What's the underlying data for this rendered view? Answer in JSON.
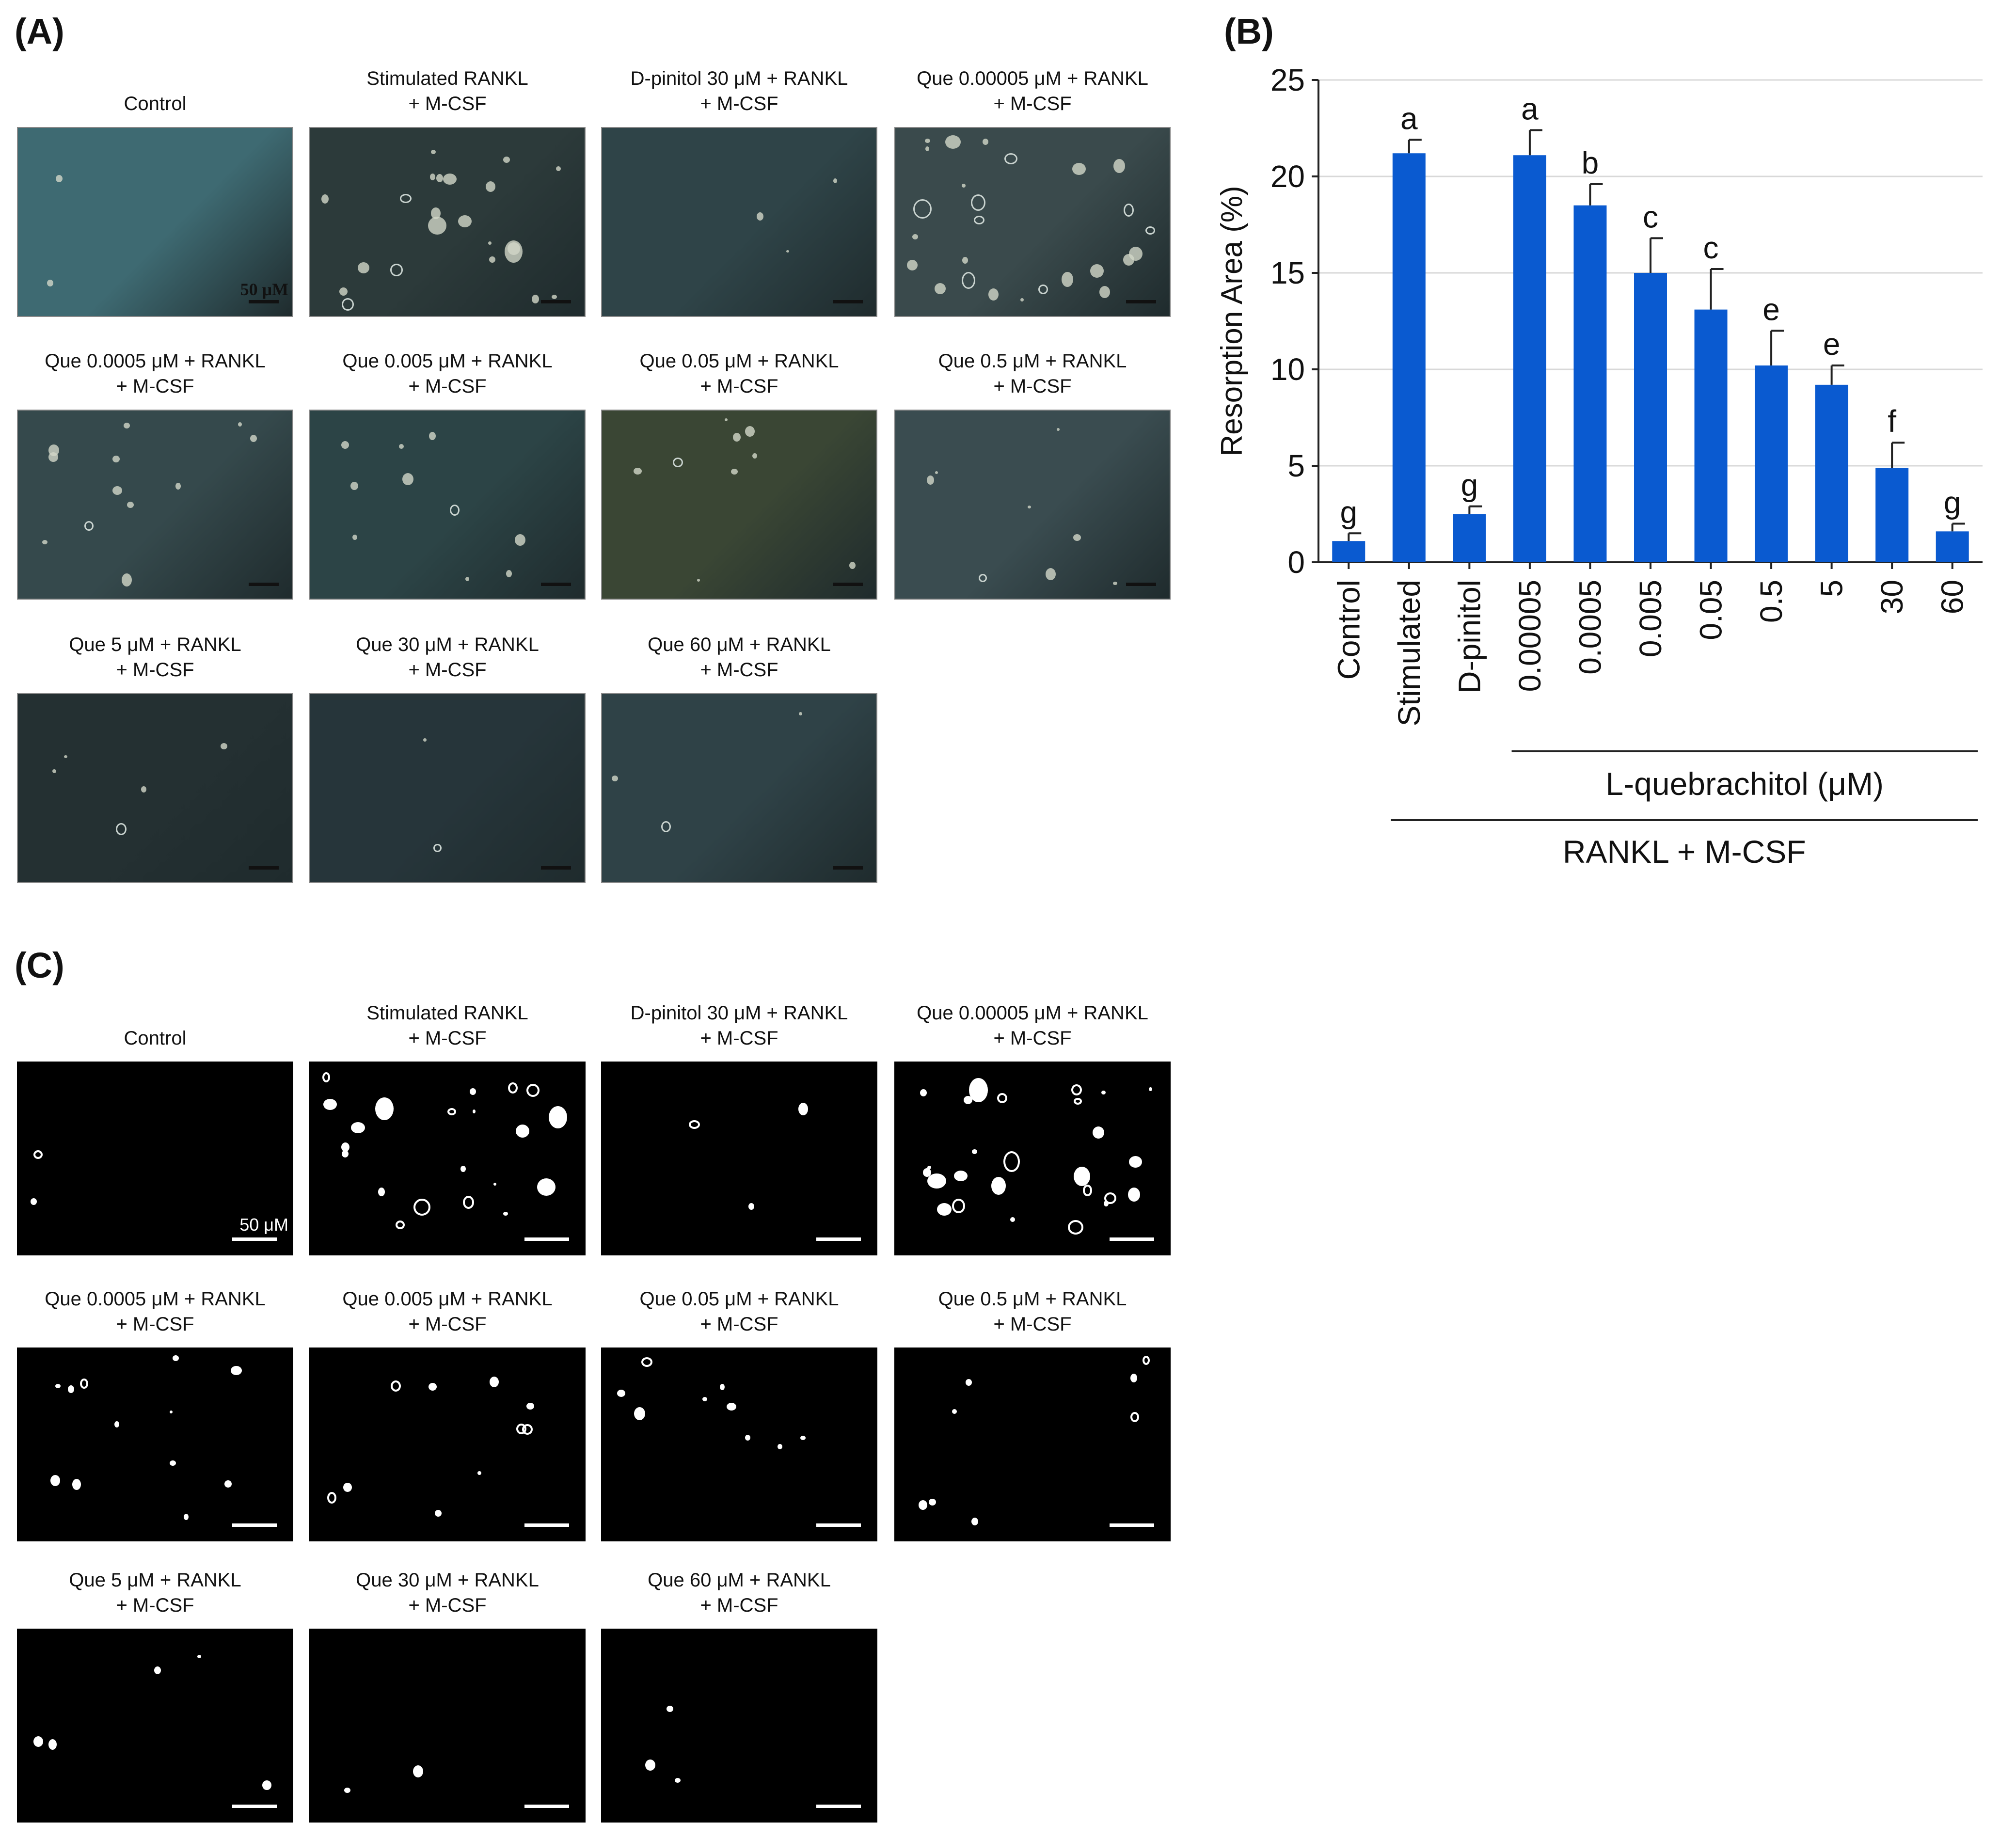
{
  "panels": {
    "a_label": "(A)",
    "b_label": "(B)",
    "c_label": "(C)"
  },
  "scale_bar_a": "50 μM",
  "scale_bar_c": "50 μM",
  "captions": [
    "Control",
    "Stimulated RANKL\n+ M-CSF",
    "D-pinitol 30 μM + RANKL\n+ M-CSF",
    "Que 0.00005 μM + RANKL\n+ M-CSF",
    "Que 0.0005 μM + RANKL\n+ M-CSF",
    "Que 0.005 μM + RANKL\n+ M-CSF",
    "Que 0.05 μM + RANKL\n+ M-CSF",
    "Que 0.5 μM + RANKL\n+ M-CSF",
    "Que 5 μM + RANKL\n+ M-CSF",
    "Que 30 μM + RANKL\n+ M-CSF",
    "Que 60 μM + RANKL\n+ M-CSF"
  ],
  "photo_colors": [
    "#3e6a72",
    "#2c3a3a",
    "#2f4448",
    "#3a4a4c",
    "#35494c",
    "#2c4446",
    "#3a4634",
    "#3a4c50",
    "#243032",
    "#26353a",
    "#2f4247"
  ],
  "chart_data": {
    "type": "bar",
    "categories": [
      "Control",
      "Stimulated",
      "D-pinitol",
      "0.00005",
      "0.0005",
      "0.005",
      "0.05",
      "0.5",
      "5",
      "30",
      "60"
    ],
    "values": [
      1.1,
      21.2,
      2.5,
      21.1,
      18.5,
      15.0,
      13.1,
      10.2,
      9.2,
      4.9,
      1.6
    ],
    "errors": [
      0.4,
      0.7,
      0.4,
      1.3,
      1.1,
      1.8,
      2.1,
      1.8,
      1.0,
      1.3,
      0.4
    ],
    "significance": [
      "g",
      "a",
      "g",
      "a",
      "b",
      "c",
      "c",
      "e",
      "e",
      "f",
      "g"
    ],
    "ylabel": "Resorption Area (%)",
    "xlabel": "",
    "ylim": [
      0,
      25
    ],
    "yticks": [
      0,
      5,
      10,
      15,
      20,
      25
    ],
    "grid": true,
    "bar_color": "#0a5ad0",
    "group_labels": [
      "L-quebrachitol (μM)",
      "RANKL + M-CSF"
    ]
  }
}
